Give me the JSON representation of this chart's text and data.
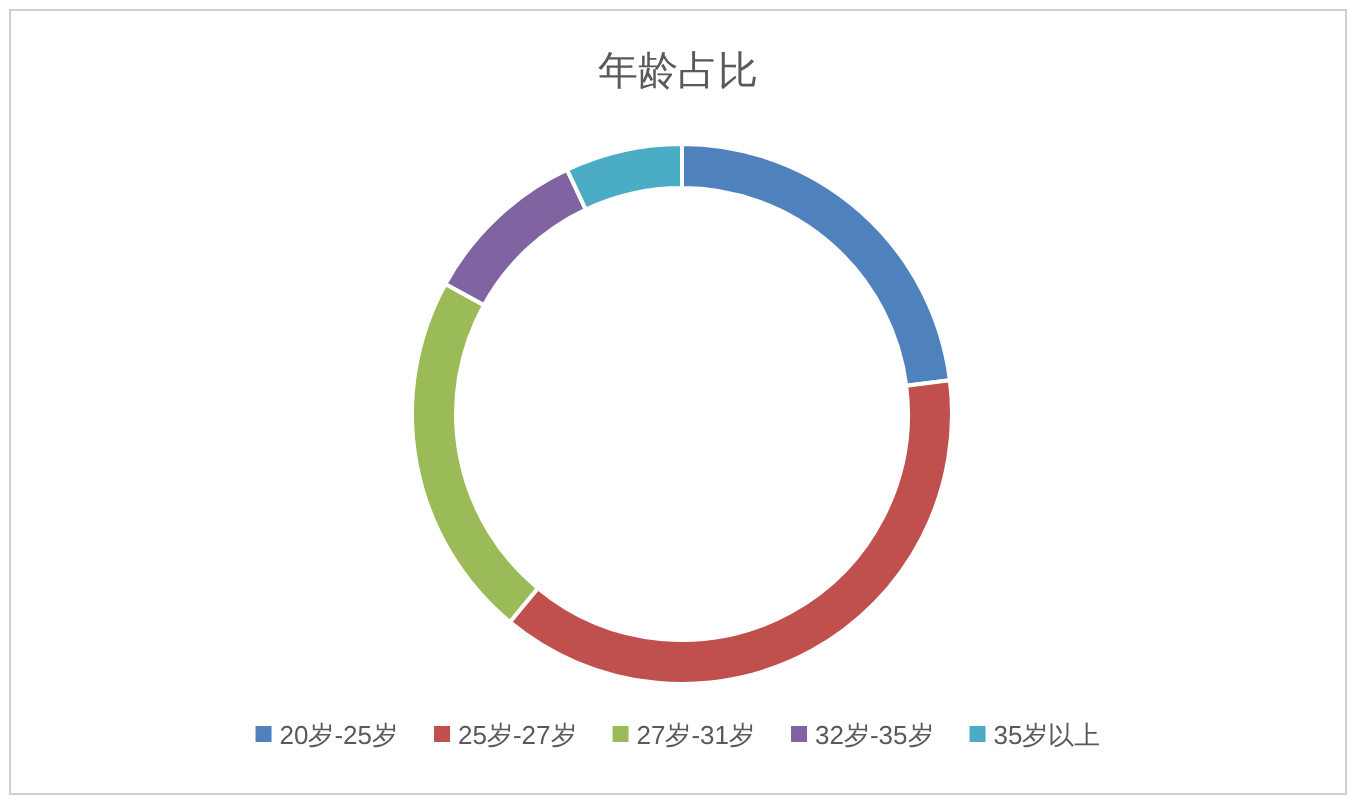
{
  "chart_data": {
    "type": "donut",
    "title": "年龄占比",
    "categories": [
      "20岁-25岁",
      "25岁-27岁",
      "27岁-31岁",
      "32岁-35岁",
      "35岁以上"
    ],
    "values": [
      23,
      38,
      22,
      10,
      7
    ],
    "colors": [
      "#4f81bd",
      "#c0504d",
      "#9bbb59",
      "#8064a2",
      "#4bacc6"
    ],
    "legend": "bottom"
  }
}
